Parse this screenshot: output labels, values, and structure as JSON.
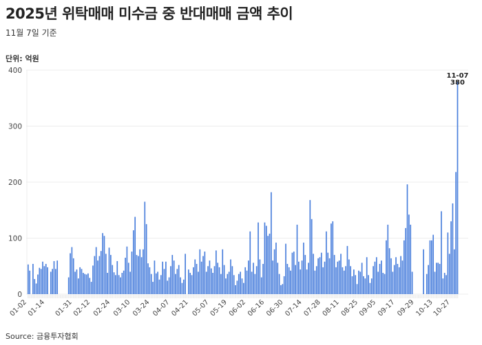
{
  "header": {
    "title": "2025년 위탁매매 미수금 중 반대매매 금액 추이",
    "subtitle": "11월 7일 기준",
    "unit": "단위: 억원"
  },
  "footer": {
    "source": "Source: 금융투자협회"
  },
  "colors": {
    "bar": "#4a7fdc",
    "grid": "#ececec",
    "axis_text": "#444444"
  },
  "chart_data": {
    "type": "bar",
    "title": "2025년 위탁매매 미수금 중 반대매매 금액 추이",
    "subtitle": "11월 7일 기준",
    "xlabel": "",
    "ylabel": "단위: 억원",
    "ylim": [
      0,
      400
    ],
    "yticks": [
      0,
      100,
      200,
      300,
      400
    ],
    "grid": true,
    "legend": null,
    "x_tick_labels": [
      "01-02",
      "01-14",
      "01-31",
      "02-12",
      "02-24",
      "03-10",
      "03-24",
      "04-07",
      "04-21",
      "05-07",
      "05-19",
      "06-02",
      "06-16",
      "06-30",
      "07-14",
      "07-28",
      "08-11",
      "08-25",
      "09-05",
      "09-17",
      "09-29",
      "10-13",
      "10-27"
    ],
    "annotation": {
      "label": "11-07",
      "value": 380
    },
    "values": [
      53,
      42,
      null,
      54,
      27,
      19,
      35,
      47,
      45,
      58,
      50,
      54,
      48,
      null,
      40,
      45,
      59,
      45,
      60,
      null,
      null,
      null,
      null,
      null,
      null,
      30,
      73,
      84,
      64,
      40,
      44,
      28,
      48,
      45,
      38,
      36,
      35,
      37,
      29,
      22,
      51,
      68,
      84,
      60,
      68,
      77,
      109,
      104,
      72,
      38,
      83,
      70,
      52,
      39,
      34,
      59,
      34,
      30,
      38,
      42,
      65,
      85,
      56,
      40,
      76,
      114,
      138,
      70,
      68,
      80,
      66,
      80,
      165,
      125,
      55,
      48,
      36,
      22,
      60,
      37,
      40,
      26,
      34,
      58,
      45,
      58,
      24,
      30,
      50,
      70,
      60,
      36,
      45,
      52,
      30,
      20,
      26,
      72,
      null,
      44,
      38,
      34,
      48,
      62,
      54,
      40,
      80,
      58,
      68,
      76,
      40,
      50,
      60,
      46,
      38,
      50,
      78,
      56,
      48,
      36,
      80,
      52,
      28,
      36,
      40,
      62,
      50,
      34,
      16,
      24,
      36,
      40,
      28,
      20,
      48,
      42,
      60,
      112,
      40,
      56,
      36,
      50,
      128,
      62,
      30,
      54,
      128,
      122,
      104,
      108,
      182,
      60,
      80,
      92,
      56,
      36,
      16,
      18,
      32,
      90,
      54,
      48,
      42,
      74,
      76,
      52,
      124,
      58,
      44,
      60,
      92,
      70,
      44,
      56,
      168,
      134,
      72,
      42,
      50,
      64,
      66,
      74,
      48,
      58,
      112,
      74,
      64,
      126,
      130,
      70,
      48,
      58,
      60,
      72,
      48,
      42,
      50,
      86,
      62,
      50,
      32,
      44,
      34,
      18,
      42,
      40,
      56,
      32,
      28,
      66,
      34,
      20,
      28,
      50,
      58,
      66,
      40,
      54,
      60,
      38,
      36,
      96,
      124,
      82,
      64,
      40,
      52,
      66,
      54,
      48,
      68,
      60,
      96,
      118,
      196,
      142,
      124,
      40,
      null,
      null,
      null,
      null,
      null,
      null,
      80,
      null,
      36,
      52,
      96,
      96,
      106,
      40,
      56,
      56,
      54,
      148,
      28,
      38,
      34,
      110,
      72,
      130,
      162,
      80,
      218,
      380
    ]
  }
}
